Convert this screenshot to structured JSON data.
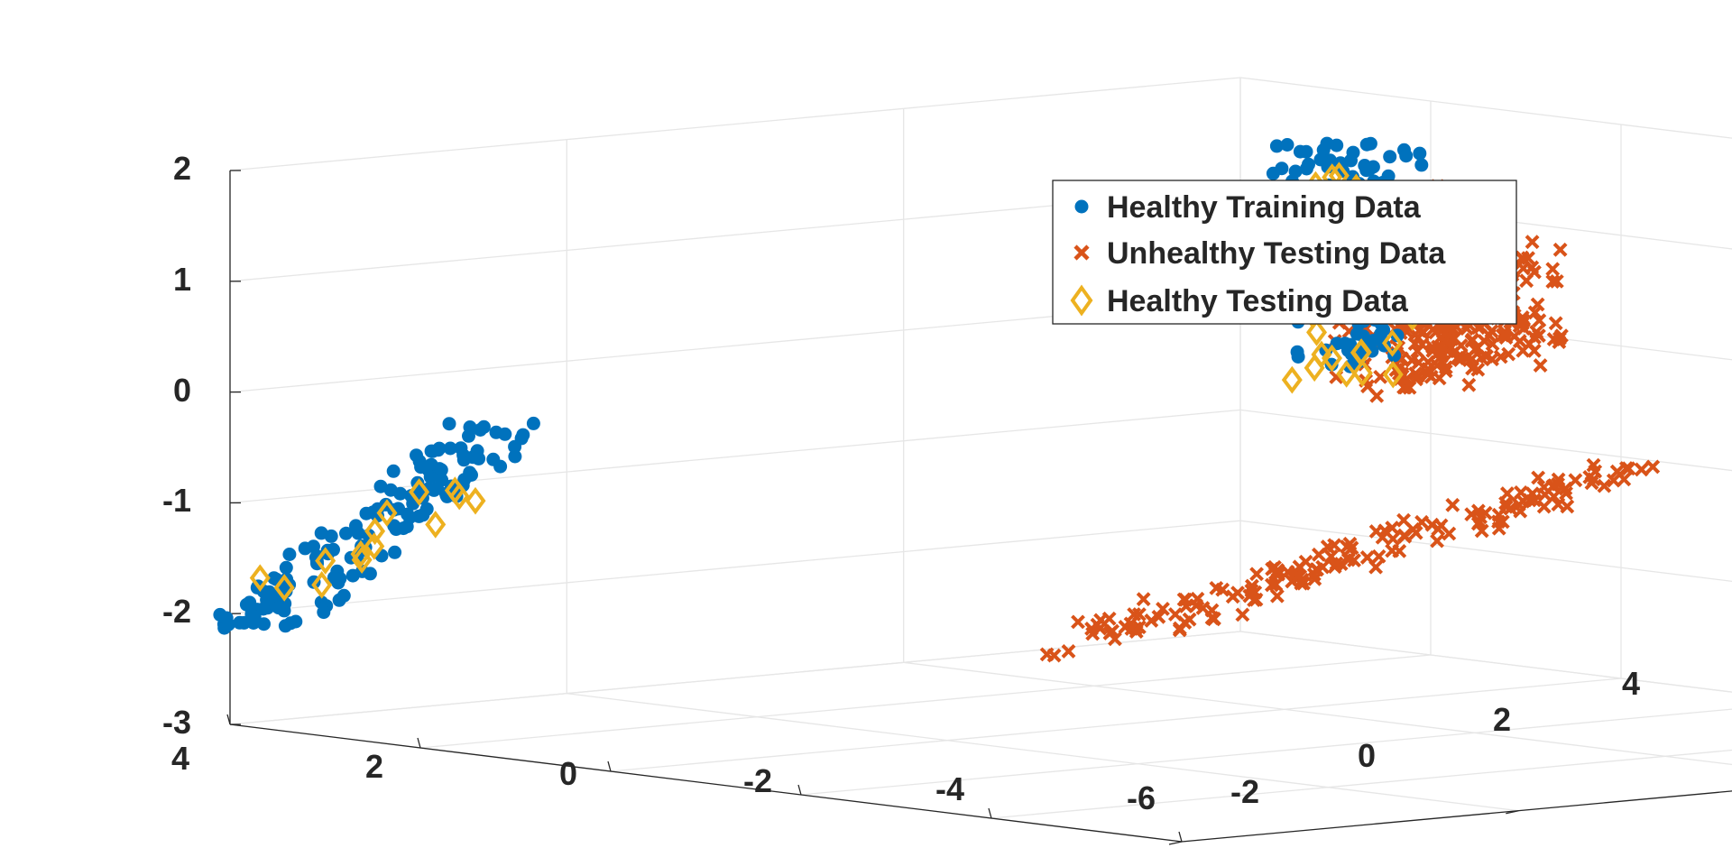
{
  "chart_data": {
    "type": "scatter",
    "dimensions": 3,
    "title": "",
    "xlabel": "",
    "ylabel": "",
    "zlabel": "",
    "xlim": [
      -6,
      4
    ],
    "ylim": [
      -2,
      4
    ],
    "zlim": [
      -3,
      2
    ],
    "grid": true,
    "legend_position": "top-right",
    "x_ticks": [
      "4",
      "2",
      "0",
      "-2",
      "-4",
      "-6"
    ],
    "y_ticks": [
      "-2",
      "0",
      "2",
      "4"
    ],
    "z_ticks": [
      "2",
      "1",
      "0",
      "-1",
      "-2",
      "-3"
    ],
    "series": [
      {
        "name": "Healthy Training Data",
        "marker": "filled-circle",
        "color": "#0072BD",
        "clusters": [
          {
            "x_range": [
              0.0,
              0.6
            ],
            "y": 2.55,
            "z_range": [
              -0.1,
              1.95
            ],
            "count": 180
          },
          {
            "x_range": [
              1.5,
              4.1
            ],
            "y": -1.8,
            "z_range": [
              -2.15,
              -0.05
            ],
            "count": 150
          }
        ]
      },
      {
        "name": "Unhealthy Testing Data",
        "marker": "x",
        "color": "#D95319",
        "clusters": [
          {
            "x_range": [
              -0.9,
              0.0
            ],
            "y": 2.55,
            "z_range": [
              -0.1,
              1.65
            ],
            "count": 260
          },
          {
            "x_range": [
              -1.7,
              -0.4
            ],
            "y": 2.55,
            "z_range": [
              0.25,
              1.2
            ],
            "count": 180
          },
          {
            "x_range": [
              -6.6,
              -0.9
            ],
            "y": 0.3,
            "z_range": [
              -2.05,
              0.1
            ],
            "count": 160
          }
        ]
      },
      {
        "name": "Healthy Testing Data",
        "marker": "open-diamond",
        "color": "#EDB120",
        "clusters": [
          {
            "x_range": [
              0.0,
              0.6
            ],
            "y": 2.55,
            "z_range": [
              -0.1,
              1.7
            ],
            "count": 45
          },
          {
            "x_range": [
              1.5,
              4.1
            ],
            "y": -1.8,
            "z_range": [
              -2.0,
              -0.3
            ],
            "count": 14
          }
        ]
      }
    ]
  }
}
